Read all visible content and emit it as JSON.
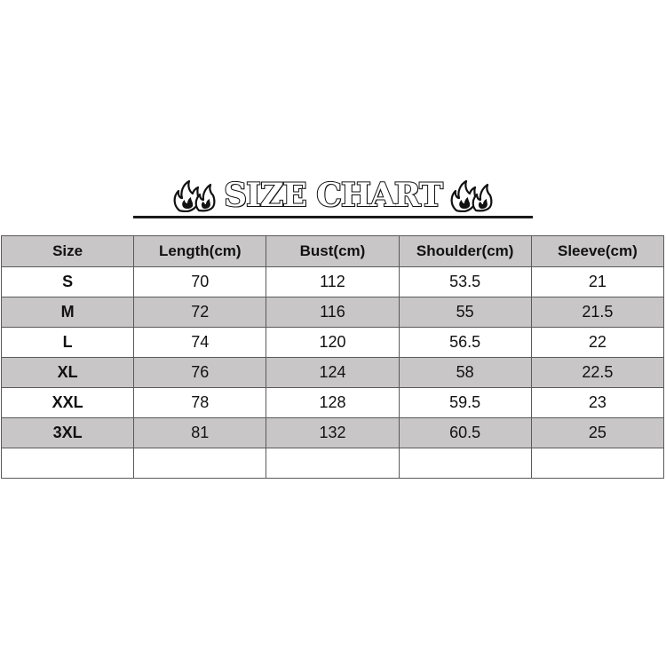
{
  "title": "SIZE CHART",
  "columns": [
    "Size",
    "Length(cm)",
    "Bust(cm)",
    "Shoulder(cm)",
    "Sleeve(cm)"
  ],
  "rows": [
    {
      "size": "S",
      "length": "70",
      "bust": "112",
      "shoulder": "53.5",
      "sleeve": "21"
    },
    {
      "size": "M",
      "length": "72",
      "bust": "116",
      "shoulder": "55",
      "sleeve": "21.5"
    },
    {
      "size": "L",
      "length": "74",
      "bust": "120",
      "shoulder": "56.5",
      "sleeve": "22"
    },
    {
      "size": "XL",
      "length": "76",
      "bust": "124",
      "shoulder": "58",
      "sleeve": "22.5"
    },
    {
      "size": "XXL",
      "length": "78",
      "bust": "128",
      "shoulder": "59.5",
      "sleeve": "23"
    },
    {
      "size": "3XL",
      "length": "81",
      "bust": "132",
      "shoulder": "60.5",
      "sleeve": "25"
    }
  ],
  "icons": {
    "left": "flame-icon",
    "right": "flame-icon"
  },
  "colors": {
    "header_bg": "#c8c6c6",
    "shaded_row_bg": "#c8c6c6",
    "border": "#5a5a5a",
    "text": "#111111"
  }
}
